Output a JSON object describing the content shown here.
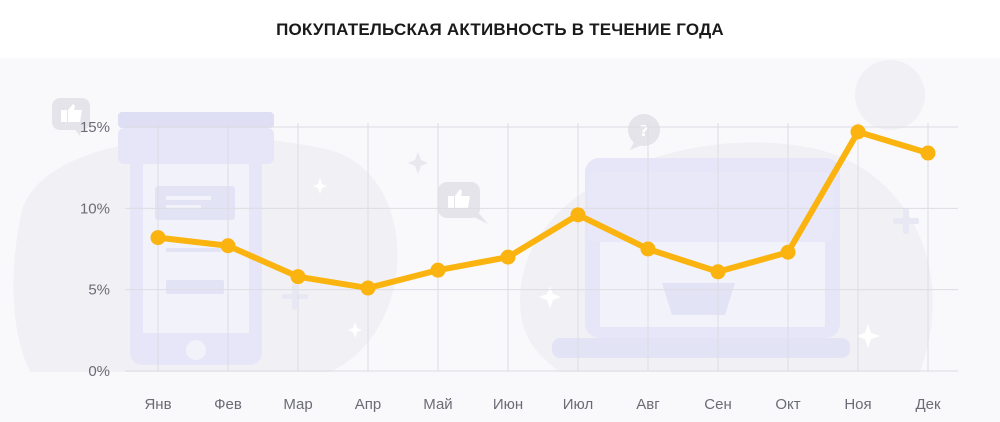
{
  "chart_data": {
    "type": "line",
    "title": "ПОКУПАТЕЛЬСКАЯ АКТИВНОСТЬ В ТЕЧЕНИЕ ГОДА",
    "categories": [
      "Янв",
      "Фев",
      "Мар",
      "Апр",
      "Май",
      "Июн",
      "Июл",
      "Авг",
      "Сен",
      "Окт",
      "Ноя",
      "Дек"
    ],
    "series": [
      {
        "values": [
          8.2,
          7.7,
          5.8,
          5.1,
          6.2,
          7.0,
          9.6,
          7.5,
          6.1,
          7.3,
          14.7,
          13.4
        ],
        "color": "#fbb40f"
      }
    ],
    "y_ticks": [
      "0%",
      "5%",
      "10%",
      "15%"
    ],
    "ylim": [
      0,
      15
    ],
    "grid": true,
    "xlabel": "",
    "ylabel": ""
  },
  "colors": {
    "line": "#fbb40f",
    "grid": "#dcdce3",
    "background": "#f9f9fc",
    "illustration": "#e3e3f7"
  }
}
